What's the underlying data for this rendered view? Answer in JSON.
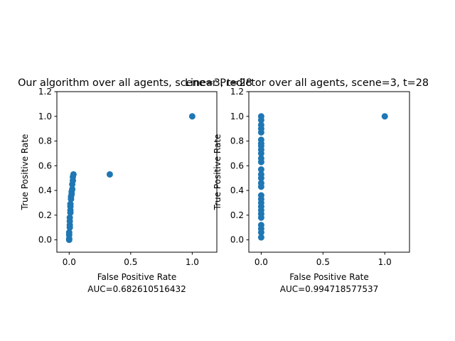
{
  "chart_data": [
    {
      "type": "scatter",
      "title": "Our algorithm over all agents, scene=3, t=28",
      "xlabel": "False Positive Rate",
      "ylabel": "True Positive Rate",
      "annotation": "AUC=0.682610516432",
      "xlim": [
        -0.1,
        1.2
      ],
      "ylim": [
        -0.1,
        1.2
      ],
      "xticks": [
        0.0,
        0.5,
        1.0
      ],
      "xtick_labels": [
        "0.0",
        "0.5",
        "1.0"
      ],
      "yticks": [
        0.0,
        0.2,
        0.4,
        0.6,
        0.8,
        1.0,
        1.2
      ],
      "ytick_labels": [
        "0.0",
        "0.2",
        "0.4",
        "0.6",
        "0.8",
        "1.0",
        "1.2"
      ],
      "marker_color": "#1f77b4",
      "points": [
        [
          0.0,
          0.0
        ],
        [
          0.0,
          0.01
        ],
        [
          0.0,
          0.04
        ],
        [
          0.0,
          0.06
        ],
        [
          0.005,
          0.1
        ],
        [
          0.005,
          0.12
        ],
        [
          0.005,
          0.15
        ],
        [
          0.005,
          0.18
        ],
        [
          0.01,
          0.22
        ],
        [
          0.01,
          0.24
        ],
        [
          0.01,
          0.27
        ],
        [
          0.01,
          0.29
        ],
        [
          0.015,
          0.33
        ],
        [
          0.015,
          0.35
        ],
        [
          0.02,
          0.37
        ],
        [
          0.02,
          0.39
        ],
        [
          0.025,
          0.41
        ],
        [
          0.025,
          0.45
        ],
        [
          0.03,
          0.48
        ],
        [
          0.03,
          0.51
        ],
        [
          0.035,
          0.53
        ],
        [
          0.33,
          0.53
        ],
        [
          1.0,
          1.0
        ]
      ]
    },
    {
      "type": "scatter",
      "title": "Linear Predictor over all agents, scene=3,  t=28",
      "xlabel": "False Positive Rate",
      "ylabel": "True Positive Rate",
      "annotation": "AUC=0.994718577537",
      "xlim": [
        -0.1,
        1.2
      ],
      "ylim": [
        -0.1,
        1.2
      ],
      "xticks": [
        0.0,
        0.5,
        1.0
      ],
      "xtick_labels": [
        "0.0",
        "0.5",
        "1.0"
      ],
      "yticks": [
        0.0,
        0.2,
        0.4,
        0.6,
        0.8,
        1.0,
        1.2
      ],
      "ytick_labels": [
        "0.0",
        "0.2",
        "0.4",
        "0.6",
        "0.8",
        "1.0",
        "1.2"
      ],
      "marker_color": "#1f77b4",
      "points": [
        [
          0.0,
          0.02
        ],
        [
          0.0,
          0.06
        ],
        [
          0.0,
          0.09
        ],
        [
          0.0,
          0.12
        ],
        [
          0.0,
          0.18
        ],
        [
          0.0,
          0.21
        ],
        [
          0.0,
          0.24
        ],
        [
          0.0,
          0.27
        ],
        [
          0.0,
          0.3
        ],
        [
          0.0,
          0.33
        ],
        [
          0.0,
          0.36
        ],
        [
          0.0,
          0.43
        ],
        [
          0.0,
          0.46
        ],
        [
          0.0,
          0.5
        ],
        [
          0.0,
          0.53
        ],
        [
          0.0,
          0.57
        ],
        [
          0.0,
          0.63
        ],
        [
          0.0,
          0.66
        ],
        [
          0.0,
          0.7
        ],
        [
          0.0,
          0.73
        ],
        [
          0.0,
          0.76
        ],
        [
          0.0,
          0.78
        ],
        [
          0.0,
          0.81
        ],
        [
          0.0,
          0.87
        ],
        [
          0.0,
          0.9
        ],
        [
          0.0,
          0.93
        ],
        [
          0.0,
          0.97
        ],
        [
          0.0,
          1.0
        ],
        [
          1.0,
          1.0
        ]
      ]
    }
  ]
}
